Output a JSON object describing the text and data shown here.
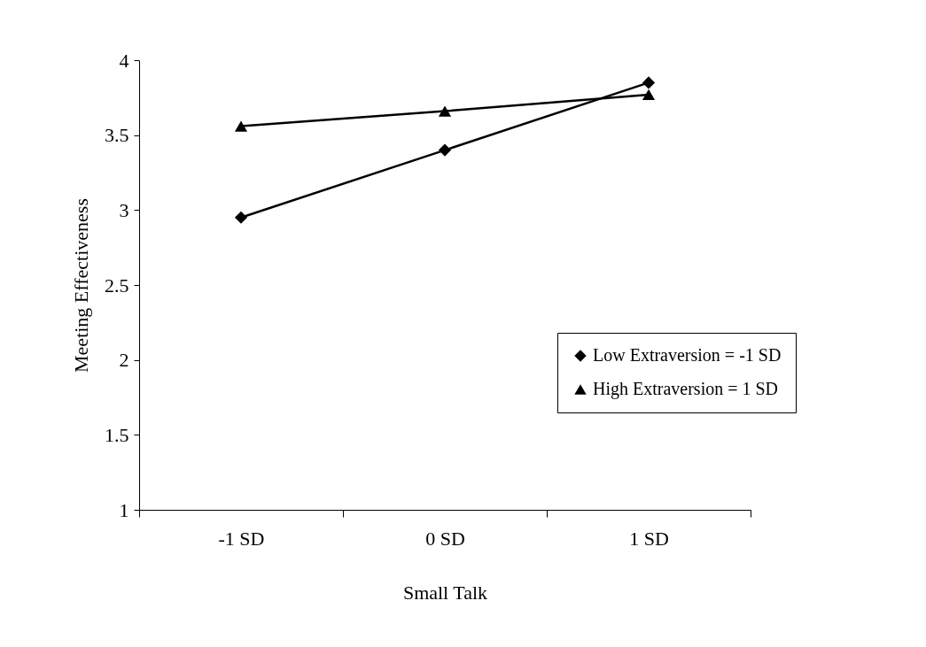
{
  "chart_data": {
    "type": "line",
    "xlabel": "Small Talk",
    "ylabel": "Meeting Effectiveness",
    "categories": [
      "-1 SD",
      "0 SD",
      "1 SD"
    ],
    "series": [
      {
        "name": "Low Extraversion = -1 SD",
        "color": "#000000",
        "marker": "diamond",
        "values": [
          2.95,
          3.4,
          3.85
        ]
      },
      {
        "name": "High Extraversion = 1 SD",
        "color": "#000000",
        "marker": "triangle",
        "values": [
          3.56,
          3.66,
          3.77
        ]
      }
    ],
    "ylim": [
      1,
      4
    ],
    "yticks": [
      1,
      1.5,
      2,
      2.5,
      3,
      3.5,
      4
    ],
    "grid": false,
    "legend": "right",
    "marker": "diamond",
    "line_style": "solid"
  }
}
